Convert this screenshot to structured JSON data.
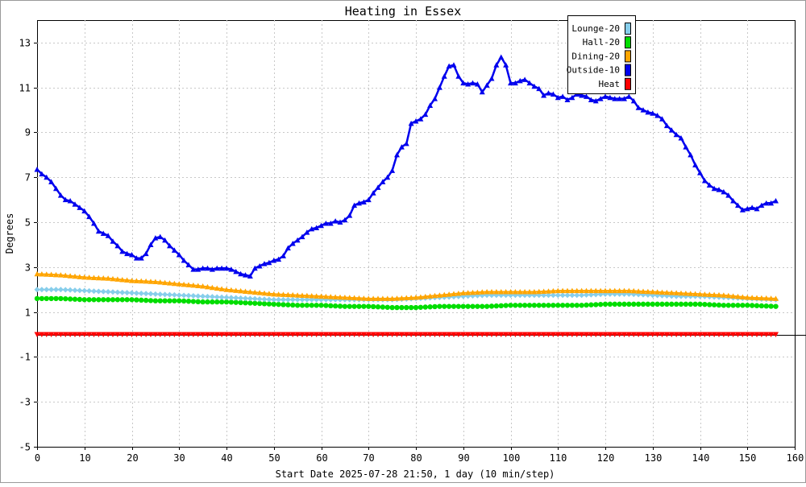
{
  "chart_data": {
    "type": "line",
    "title": "Heating in Essex",
    "xlabel": "Start Date 2025-07-28 21:50, 1 day (10 min/step)",
    "ylabel": "Degrees",
    "xlim": [
      0,
      160
    ],
    "ylim": [
      -5,
      14
    ],
    "xticks": [
      0,
      10,
      20,
      30,
      40,
      50,
      60,
      70,
      80,
      90,
      100,
      110,
      120,
      130,
      140,
      150,
      160
    ],
    "yticks": [
      -5,
      -3,
      -1,
      1,
      3,
      5,
      7,
      9,
      11,
      13
    ],
    "grid": true,
    "legend_position": "top-right",
    "series": [
      {
        "name": "Lounge-20",
        "color": "#87CEEB",
        "marker": "diamond",
        "points": [
          [
            0,
            2.0
          ],
          [
            5,
            2.0
          ],
          [
            10,
            1.95
          ],
          [
            15,
            1.9
          ],
          [
            20,
            1.85
          ],
          [
            25,
            1.8
          ],
          [
            30,
            1.75
          ],
          [
            35,
            1.7
          ],
          [
            40,
            1.65
          ],
          [
            45,
            1.6
          ],
          [
            50,
            1.55
          ],
          [
            55,
            1.55
          ],
          [
            60,
            1.55
          ],
          [
            65,
            1.55
          ],
          [
            70,
            1.55
          ],
          [
            75,
            1.55
          ],
          [
            80,
            1.6
          ],
          [
            85,
            1.65
          ],
          [
            90,
            1.7
          ],
          [
            95,
            1.75
          ],
          [
            100,
            1.75
          ],
          [
            105,
            1.75
          ],
          [
            110,
            1.75
          ],
          [
            115,
            1.75
          ],
          [
            120,
            1.8
          ],
          [
            125,
            1.8
          ],
          [
            130,
            1.75
          ],
          [
            135,
            1.7
          ],
          [
            140,
            1.7
          ],
          [
            145,
            1.65
          ],
          [
            150,
            1.6
          ],
          [
            156,
            1.55
          ]
        ]
      },
      {
        "name": "Hall-20",
        "color": "#00DD00",
        "marker": "circle",
        "points": [
          [
            0,
            1.6
          ],
          [
            5,
            1.6
          ],
          [
            10,
            1.55
          ],
          [
            15,
            1.55
          ],
          [
            20,
            1.55
          ],
          [
            25,
            1.5
          ],
          [
            30,
            1.5
          ],
          [
            35,
            1.45
          ],
          [
            40,
            1.45
          ],
          [
            45,
            1.4
          ],
          [
            50,
            1.35
          ],
          [
            55,
            1.3
          ],
          [
            60,
            1.3
          ],
          [
            65,
            1.25
          ],
          [
            70,
            1.25
          ],
          [
            75,
            1.2
          ],
          [
            80,
            1.2
          ],
          [
            85,
            1.25
          ],
          [
            90,
            1.25
          ],
          [
            95,
            1.25
          ],
          [
            100,
            1.3
          ],
          [
            105,
            1.3
          ],
          [
            110,
            1.3
          ],
          [
            115,
            1.3
          ],
          [
            120,
            1.35
          ],
          [
            125,
            1.35
          ],
          [
            130,
            1.35
          ],
          [
            135,
            1.35
          ],
          [
            140,
            1.35
          ],
          [
            145,
            1.3
          ],
          [
            150,
            1.3
          ],
          [
            156,
            1.25
          ]
        ]
      },
      {
        "name": "Dining-20",
        "color": "#FFA500",
        "marker": "triangle-up",
        "points": [
          [
            0,
            2.7
          ],
          [
            5,
            2.65
          ],
          [
            10,
            2.55
          ],
          [
            15,
            2.5
          ],
          [
            20,
            2.4
          ],
          [
            25,
            2.35
          ],
          [
            30,
            2.25
          ],
          [
            35,
            2.15
          ],
          [
            40,
            2.0
          ],
          [
            45,
            1.9
          ],
          [
            50,
            1.8
          ],
          [
            55,
            1.75
          ],
          [
            60,
            1.7
          ],
          [
            65,
            1.65
          ],
          [
            70,
            1.6
          ],
          [
            75,
            1.6
          ],
          [
            80,
            1.65
          ],
          [
            85,
            1.75
          ],
          [
            90,
            1.85
          ],
          [
            95,
            1.9
          ],
          [
            100,
            1.9
          ],
          [
            105,
            1.9
          ],
          [
            110,
            1.95
          ],
          [
            115,
            1.95
          ],
          [
            120,
            1.95
          ],
          [
            125,
            1.95
          ],
          [
            130,
            1.9
          ],
          [
            135,
            1.85
          ],
          [
            140,
            1.8
          ],
          [
            145,
            1.75
          ],
          [
            150,
            1.65
          ],
          [
            156,
            1.6
          ]
        ]
      },
      {
        "name": "Outside-10",
        "color": "#0000EE",
        "marker": "triangle-up",
        "points": [
          [
            0,
            7.35
          ],
          [
            1,
            7.15
          ],
          [
            2,
            7.0
          ],
          [
            3,
            6.8
          ],
          [
            4,
            6.5
          ],
          [
            5,
            6.2
          ],
          [
            6,
            6.0
          ],
          [
            7,
            5.95
          ],
          [
            8,
            5.8
          ],
          [
            9,
            5.65
          ],
          [
            10,
            5.5
          ],
          [
            11,
            5.25
          ],
          [
            12,
            4.95
          ],
          [
            13,
            4.6
          ],
          [
            14,
            4.5
          ],
          [
            15,
            4.4
          ],
          [
            16,
            4.15
          ],
          [
            17,
            3.95
          ],
          [
            18,
            3.7
          ],
          [
            19,
            3.6
          ],
          [
            20,
            3.55
          ],
          [
            21,
            3.4
          ],
          [
            22,
            3.4
          ],
          [
            23,
            3.6
          ],
          [
            24,
            4.0
          ],
          [
            25,
            4.3
          ],
          [
            26,
            4.35
          ],
          [
            27,
            4.2
          ],
          [
            28,
            3.95
          ],
          [
            29,
            3.75
          ],
          [
            30,
            3.55
          ],
          [
            31,
            3.3
          ],
          [
            32,
            3.1
          ],
          [
            33,
            2.9
          ],
          [
            34,
            2.9
          ],
          [
            35,
            2.95
          ],
          [
            36,
            2.95
          ],
          [
            37,
            2.9
          ],
          [
            38,
            2.95
          ],
          [
            39,
            2.95
          ],
          [
            40,
            2.95
          ],
          [
            41,
            2.9
          ],
          [
            42,
            2.8
          ],
          [
            43,
            2.7
          ],
          [
            44,
            2.65
          ],
          [
            45,
            2.6
          ],
          [
            46,
            2.95
          ],
          [
            47,
            3.05
          ],
          [
            48,
            3.15
          ],
          [
            49,
            3.2
          ],
          [
            50,
            3.3
          ],
          [
            51,
            3.35
          ],
          [
            52,
            3.5
          ],
          [
            53,
            3.85
          ],
          [
            54,
            4.05
          ],
          [
            55,
            4.2
          ],
          [
            56,
            4.35
          ],
          [
            57,
            4.55
          ],
          [
            58,
            4.7
          ],
          [
            59,
            4.75
          ],
          [
            60,
            4.85
          ],
          [
            61,
            4.95
          ],
          [
            62,
            4.95
          ],
          [
            63,
            5.05
          ],
          [
            64,
            5.0
          ],
          [
            65,
            5.1
          ],
          [
            66,
            5.3
          ],
          [
            67,
            5.75
          ],
          [
            68,
            5.85
          ],
          [
            69,
            5.9
          ],
          [
            70,
            6.0
          ],
          [
            71,
            6.3
          ],
          [
            72,
            6.55
          ],
          [
            73,
            6.8
          ],
          [
            74,
            7.0
          ],
          [
            75,
            7.3
          ],
          [
            76,
            8.0
          ],
          [
            77,
            8.35
          ],
          [
            78,
            8.5
          ],
          [
            79,
            9.4
          ],
          [
            80,
            9.5
          ],
          [
            81,
            9.6
          ],
          [
            82,
            9.8
          ],
          [
            83,
            10.2
          ],
          [
            84,
            10.5
          ],
          [
            85,
            11.0
          ],
          [
            86,
            11.5
          ],
          [
            87,
            11.95
          ],
          [
            88,
            12.0
          ],
          [
            89,
            11.5
          ],
          [
            90,
            11.2
          ],
          [
            91,
            11.15
          ],
          [
            92,
            11.2
          ],
          [
            93,
            11.15
          ],
          [
            94,
            10.8
          ],
          [
            95,
            11.1
          ],
          [
            96,
            11.4
          ],
          [
            97,
            12.0
          ],
          [
            98,
            12.35
          ],
          [
            99,
            12.0
          ],
          [
            100,
            11.2
          ],
          [
            101,
            11.2
          ],
          [
            102,
            11.3
          ],
          [
            103,
            11.35
          ],
          [
            104,
            11.2
          ],
          [
            105,
            11.05
          ],
          [
            106,
            10.95
          ],
          [
            107,
            10.65
          ],
          [
            108,
            10.75
          ],
          [
            109,
            10.7
          ],
          [
            110,
            10.55
          ],
          [
            111,
            10.6
          ],
          [
            112,
            10.45
          ],
          [
            113,
            10.55
          ],
          [
            114,
            10.7
          ],
          [
            115,
            10.65
          ],
          [
            116,
            10.6
          ],
          [
            117,
            10.45
          ],
          [
            118,
            10.4
          ],
          [
            119,
            10.5
          ],
          [
            120,
            10.6
          ],
          [
            121,
            10.55
          ],
          [
            122,
            10.5
          ],
          [
            123,
            10.5
          ],
          [
            124,
            10.5
          ],
          [
            125,
            10.6
          ],
          [
            126,
            10.4
          ],
          [
            127,
            10.1
          ],
          [
            128,
            10.0
          ],
          [
            129,
            9.9
          ],
          [
            130,
            9.85
          ],
          [
            131,
            9.75
          ],
          [
            132,
            9.6
          ],
          [
            133,
            9.3
          ],
          [
            134,
            9.1
          ],
          [
            135,
            8.9
          ],
          [
            136,
            8.75
          ],
          [
            137,
            8.35
          ],
          [
            138,
            8.0
          ],
          [
            139,
            7.55
          ],
          [
            140,
            7.2
          ],
          [
            141,
            6.85
          ],
          [
            142,
            6.65
          ],
          [
            143,
            6.5
          ],
          [
            144,
            6.45
          ],
          [
            145,
            6.35
          ],
          [
            146,
            6.2
          ],
          [
            147,
            5.95
          ],
          [
            148,
            5.75
          ],
          [
            149,
            5.55
          ],
          [
            150,
            5.6
          ],
          [
            151,
            5.65
          ],
          [
            152,
            5.6
          ],
          [
            153,
            5.75
          ],
          [
            154,
            5.85
          ],
          [
            155,
            5.85
          ],
          [
            156,
            5.95
          ]
        ]
      },
      {
        "name": "Heat",
        "color": "#FF0000",
        "marker": "triangle-down",
        "points": [
          [
            0,
            0
          ],
          [
            20,
            0
          ],
          [
            40,
            0
          ],
          [
            60,
            0
          ],
          [
            80,
            0
          ],
          [
            100,
            0
          ],
          [
            120,
            0
          ],
          [
            140,
            0
          ],
          [
            156,
            0
          ]
        ]
      }
    ]
  }
}
